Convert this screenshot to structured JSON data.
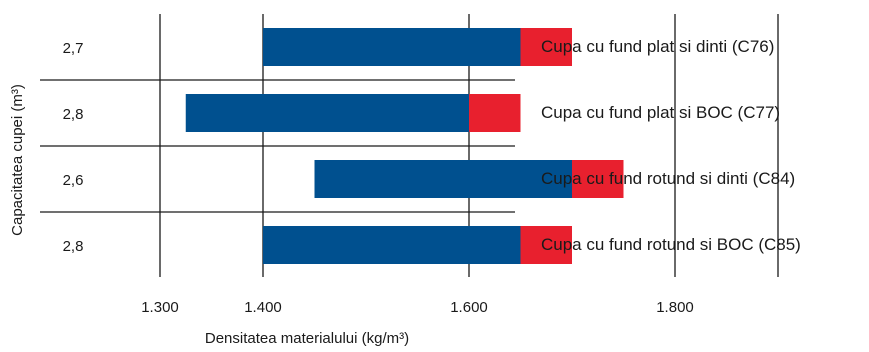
{
  "chart_data": {
    "type": "bar",
    "orientation": "horizontal",
    "stacked": true,
    "xlabel": "Densitatea materialului (kg/m³)",
    "ylabel": "Capacitatea cupei (m³)",
    "xlim": [
      1100,
      1950
    ],
    "x_ticks": [
      1300,
      1400,
      1600,
      1800
    ],
    "x_tick_labels": [
      "1.300",
      "1.400",
      "1.600",
      "1.800"
    ],
    "grid": true,
    "colors": {
      "base": "#00508f",
      "extension": "#e8202e",
      "grid": "#1a1a1a"
    },
    "rows": [
      {
        "capacity": "2,7",
        "label": "Cupa cu fund plat si dinti (C76)",
        "start": 1400,
        "base_end": 1650,
        "end": 1700
      },
      {
        "capacity": "2,8",
        "label": "Cupa cu fund plat si BOC (C77)",
        "start": 1325,
        "base_end": 1600,
        "end": 1650
      },
      {
        "capacity": "2,6",
        "label": "Cupa cu fund rotund si dinti (C84)",
        "start": 1450,
        "base_end": 1700,
        "end": 1750
      },
      {
        "capacity": "2,8",
        "label": "Cupa cu fund rotund si BOC (C85)",
        "start": 1400,
        "base_end": 1650,
        "end": 1700
      }
    ]
  }
}
